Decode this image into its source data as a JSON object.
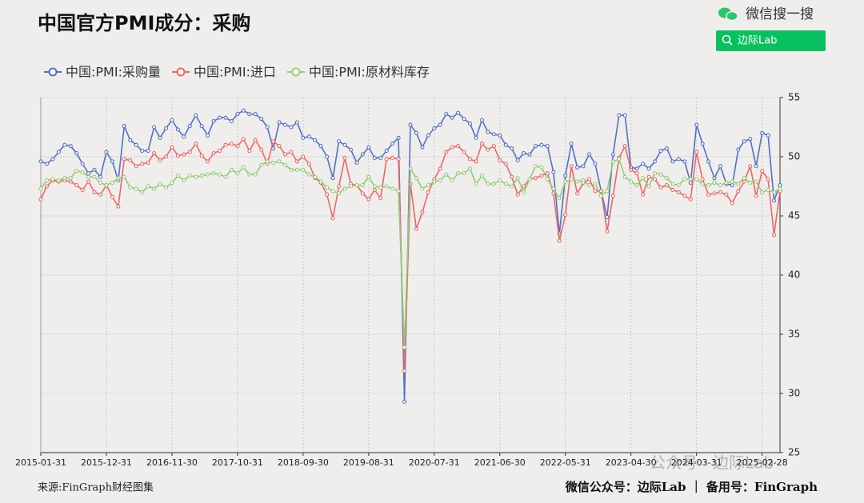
{
  "header": {
    "search_brand": "微信搜一搜",
    "search_button": "边际Lab"
  },
  "chart_data": {
    "type": "line",
    "title": "中国官方PMI成分：采购",
    "categories": [
      "2015-01-31",
      null,
      null,
      null,
      null,
      null,
      null,
      null,
      null,
      null,
      null,
      "2015-12-31",
      null,
      null,
      null,
      null,
      null,
      null,
      null,
      null,
      null,
      null,
      "2016-11-30",
      null,
      null,
      null,
      null,
      null,
      null,
      null,
      null,
      null,
      null,
      "2017-10-31",
      null,
      null,
      null,
      null,
      null,
      null,
      null,
      null,
      null,
      null,
      "2018-09-30",
      null,
      null,
      null,
      null,
      null,
      null,
      null,
      null,
      null,
      null,
      "2019-08-31",
      null,
      null,
      null,
      null,
      null,
      null,
      null,
      null,
      null,
      null,
      "2020-07-31",
      null,
      null,
      null,
      null,
      null,
      null,
      null,
      null,
      null,
      null,
      "2021-06-30",
      null,
      null,
      null,
      null,
      null,
      null,
      null,
      null,
      null,
      null,
      "2022-05-31",
      null,
      null,
      null,
      null,
      null,
      null,
      null,
      null,
      null,
      null,
      "2023-04-30",
      null,
      null,
      null,
      null,
      null,
      null,
      null,
      null,
      null,
      null,
      "2024-03-31",
      null,
      null,
      null,
      null,
      null,
      null,
      null,
      null,
      null,
      null,
      "2025-02-28",
      null,
      null,
      null
    ],
    "series": [
      {
        "name": "中国:PMI:采购量",
        "color": "#5470c6",
        "values": [
          49.6,
          49.4,
          49.8,
          50.4,
          51.0,
          50.9,
          50.3,
          49.4,
          48.6,
          48.9,
          48.3,
          50.4,
          49.6,
          48.0,
          52.6,
          51.4,
          51.0,
          50.5,
          50.5,
          52.5,
          51.6,
          52.4,
          53.1,
          52.3,
          51.7,
          52.6,
          53.5,
          52.6,
          51.8,
          53.0,
          53.3,
          53.3,
          53.0,
          53.6,
          53.9,
          53.6,
          53.6,
          53.2,
          52.5,
          50.7,
          52.9,
          52.7,
          52.5,
          52.9,
          51.6,
          51.7,
          51.4,
          50.9,
          50.0,
          48.2,
          51.3,
          51.0,
          50.6,
          49.5,
          50.2,
          50.8,
          49.9,
          49.9,
          50.5,
          51.1,
          51.6,
          29.3,
          52.7,
          52.0,
          50.8,
          51.8,
          52.4,
          52.7,
          53.6,
          53.3,
          53.7,
          53.2,
          52.8,
          51.6,
          53.1,
          52.1,
          51.9,
          51.8,
          51.0,
          50.7,
          49.7,
          50.3,
          50.2,
          50.9,
          51.0,
          50.9,
          48.7,
          43.5,
          48.4,
          51.1,
          49.1,
          49.2,
          50.2,
          49.4,
          47.1,
          44.9,
          50.2,
          53.5,
          53.5,
          49.1,
          49.0,
          49.4,
          49.0,
          49.6,
          50.5,
          50.7,
          49.6,
          49.8,
          49.6,
          47.8,
          52.7,
          51.1,
          49.6,
          48.2,
          49.2,
          47.7,
          47.6,
          50.6,
          51.3,
          51.5,
          49.2,
          52.0,
          51.8,
          46.3,
          47.6
        ]
      },
      {
        "name": "中国:PMI:进口",
        "color": "#ee6666",
        "values": [
          46.4,
          47.5,
          48.0,
          47.9,
          48.0,
          47.9,
          47.6,
          47.2,
          47.9,
          47.0,
          46.8,
          47.6,
          46.6,
          45.8,
          49.8,
          49.7,
          49.2,
          49.4,
          49.5,
          50.3,
          49.7,
          50.0,
          50.8,
          50.1,
          50.2,
          50.4,
          51.1,
          50.1,
          49.6,
          50.3,
          50.5,
          51.0,
          51.1,
          50.9,
          51.5,
          50.5,
          51.4,
          50.6,
          49.4,
          51.3,
          50.9,
          50.2,
          50.4,
          49.6,
          50.0,
          49.4,
          48.2,
          47.8,
          46.8,
          44.8,
          47.5,
          49.9,
          47.7,
          47.6,
          46.9,
          46.4,
          47.2,
          46.5,
          49.8,
          49.9,
          49.8,
          31.9,
          47.7,
          43.9,
          45.3,
          47.0,
          48.1,
          49.0,
          50.4,
          50.8,
          50.9,
          50.4,
          49.8,
          49.6,
          51.1,
          50.6,
          50.9,
          49.7,
          49.4,
          48.3,
          46.8,
          47.5,
          48.1,
          48.2,
          48.4,
          48.6,
          46.9,
          42.9,
          45.1,
          49.2,
          46.9,
          47.8,
          48.1,
          47.1,
          47.1,
          43.7,
          46.7,
          49.9,
          50.9,
          48.9,
          48.6,
          46.8,
          48.3,
          48.1,
          47.4,
          47.6,
          47.2,
          47.0,
          46.7,
          46.4,
          50.4,
          48.1,
          46.8,
          46.9,
          47.0,
          46.8,
          46.1,
          47.1,
          47.9,
          49.2,
          46.7,
          48.8,
          48.1,
          43.4,
          47.1
        ]
      },
      {
        "name": "中国:PMI:原材料库存",
        "color": "#91cc75",
        "values": [
          47.3,
          48.0,
          48.1,
          48.0,
          48.2,
          48.2,
          48.8,
          48.7,
          48.3,
          48.3,
          47.8,
          47.6,
          47.8,
          48.2,
          48.3,
          47.4,
          47.3,
          47.0,
          47.5,
          47.3,
          47.7,
          47.4,
          47.8,
          48.4,
          48.0,
          48.4,
          48.3,
          48.4,
          48.5,
          48.6,
          48.5,
          48.3,
          48.9,
          48.6,
          49.1,
          48.5,
          48.5,
          49.3,
          49.6,
          49.5,
          49.6,
          49.3,
          48.9,
          48.9,
          48.9,
          48.5,
          48.3,
          47.9,
          47.4,
          47.1,
          46.9,
          47.3,
          47.5,
          47.6,
          47.6,
          48.3,
          47.5,
          47.4,
          47.5,
          47.3,
          47.1,
          33.9,
          49.0,
          48.2,
          47.3,
          47.6,
          47.9,
          48.0,
          48.5,
          48.0,
          48.6,
          48.6,
          49.0,
          47.7,
          48.4,
          47.7,
          47.7,
          48.0,
          47.7,
          47.5,
          48.2,
          47.0,
          48.1,
          49.2,
          49.1,
          48.1,
          47.3,
          46.5,
          47.9,
          48.1,
          47.9,
          48.0,
          47.6,
          47.7,
          46.7,
          47.1,
          49.6,
          49.8,
          48.3,
          47.9,
          47.6,
          48.2,
          47.5,
          48.6,
          48.5,
          48.2,
          47.7,
          47.6,
          48.1,
          48.1,
          48.1,
          47.7,
          47.6,
          47.8,
          47.6,
          47.8,
          47.9,
          47.7,
          48.2,
          47.8,
          47.9,
          47.0,
          47.2,
          47.0,
          47.3
        ]
      }
    ],
    "ylim": [
      25,
      55
    ],
    "yticks": [
      25,
      30,
      35,
      40,
      45,
      50,
      55
    ],
    "grid": true,
    "y_axis_side": "right",
    "legend": "top"
  },
  "footer": {
    "source": "来源:FinGraph财经图集",
    "credit": "微信公众号：边际Lab ｜ 备用号：FinGraph",
    "watermark": "公众号 · 边际Lab"
  }
}
